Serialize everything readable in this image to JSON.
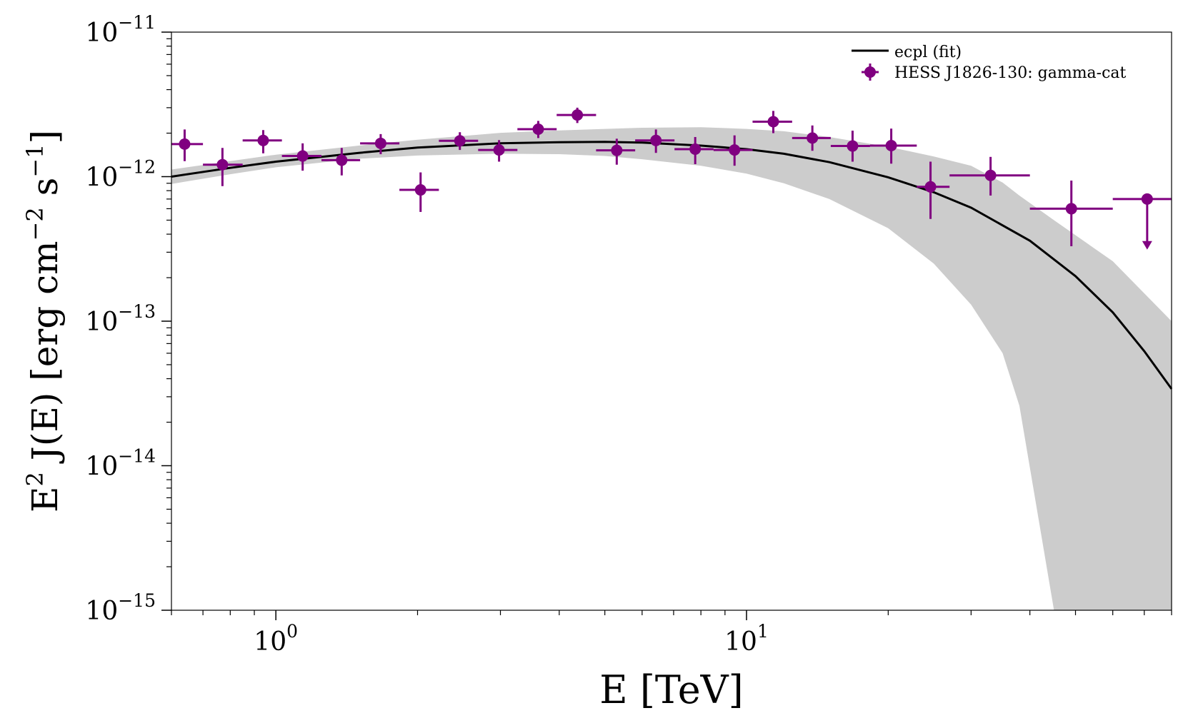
{
  "chart_data": {
    "type": "scatter",
    "title": "",
    "xlabel": "E [TeV]",
    "ylabel_parts": {
      "pre": "E",
      "pre_sup": "2",
      "mid": " J(E) [erg cm",
      "exp1": "−2",
      "mid2": " s",
      "exp2": "−1",
      "post": "]"
    },
    "xscale": "log",
    "yscale": "log",
    "xlim": [
      0.6,
      80
    ],
    "ylim": [
      1e-15,
      1e-11
    ],
    "grid": false,
    "legend_placement": "upper-right",
    "x_ticks": [
      {
        "value": 1,
        "base": "10",
        "exp": "0"
      },
      {
        "value": 10,
        "base": "10",
        "exp": "1"
      }
    ],
    "y_ticks": [
      {
        "value": 1e-11,
        "base": "10",
        "exp": "−11"
      },
      {
        "value": 1e-12,
        "base": "10",
        "exp": "−12"
      },
      {
        "value": 1e-13,
        "base": "10",
        "exp": "−13"
      },
      {
        "value": 1e-14,
        "base": "10",
        "exp": "−14"
      },
      {
        "value": 1e-15,
        "base": "10",
        "exp": "−15"
      }
    ],
    "colors": {
      "points": "#800080",
      "fit": "#000000",
      "band": "#cccccc"
    },
    "series": [
      {
        "name": "ecpl (fit)",
        "kind": "line",
        "x": [
          0.6,
          0.8,
          1.0,
          1.5,
          2.0,
          3.0,
          4.0,
          5.0,
          6.0,
          8.0,
          10.0,
          12.0,
          15.0,
          20.0,
          25.0,
          30.0,
          40.0,
          50.0,
          60.0,
          70.0,
          80.0
        ],
        "y": [
          1e-12,
          1.15e-12,
          1.27e-12,
          1.46e-12,
          1.59e-12,
          1.7e-12,
          1.73e-12,
          1.74e-12,
          1.72e-12,
          1.64e-12,
          1.55e-12,
          1.44e-12,
          1.26e-12,
          9.9e-13,
          7.8e-13,
          6.1e-13,
          3.6e-13,
          2.05e-13,
          1.15e-13,
          6.2e-14,
          3.4e-14
        ]
      },
      {
        "name": "ecpl (fit) band",
        "kind": "band",
        "x": [
          0.6,
          0.8,
          1.0,
          1.5,
          2.0,
          3.0,
          4.0,
          5.0,
          6.0,
          8.0,
          10.0,
          12.0,
          15.0,
          20.0,
          25.0,
          30.0,
          35.0,
          38.0,
          45.0,
          60.0,
          80.0
        ],
        "y_low": [
          8.9e-13,
          1.04e-12,
          1.16e-12,
          1.33e-12,
          1.4e-12,
          1.44e-12,
          1.43e-12,
          1.39e-12,
          1.32e-12,
          1.19e-12,
          1.05e-12,
          9e-13,
          7e-13,
          4.4e-13,
          2.5e-13,
          1.3e-13,
          6e-14,
          2.6e-14,
          1e-15,
          1e-15,
          1e-15
        ],
        "y_high": [
          1.12e-12,
          1.28e-12,
          1.42e-12,
          1.64e-12,
          1.8e-12,
          2.01e-12,
          2.09e-12,
          2.14e-12,
          2.18e-12,
          2.2e-12,
          2.14e-12,
          2.06e-12,
          1.88e-12,
          1.61e-12,
          1.38e-12,
          1.19e-12,
          9.1e-13,
          7.4e-13,
          5e-13,
          2.6e-13,
          1e-13
        ]
      },
      {
        "name": "HESS J1826-130: gamma-cat",
        "kind": "points",
        "points": [
          {
            "x": 0.64,
            "xlo": 0.59,
            "xhi": 0.7,
            "y": 1.68e-12,
            "ylo": 1.28e-12,
            "yhi": 2.12e-12
          },
          {
            "x": 0.77,
            "xlo": 0.7,
            "xhi": 0.85,
            "y": 1.21e-12,
            "ylo": 8.6e-13,
            "yhi": 1.58e-12
          },
          {
            "x": 0.94,
            "xlo": 0.85,
            "xhi": 1.03,
            "y": 1.78e-12,
            "ylo": 1.45e-12,
            "yhi": 2.1e-12
          },
          {
            "x": 1.14,
            "xlo": 1.03,
            "xhi": 1.25,
            "y": 1.39e-12,
            "ylo": 1.1e-12,
            "yhi": 1.7e-12
          },
          {
            "x": 1.38,
            "xlo": 1.25,
            "xhi": 1.51,
            "y": 1.3e-12,
            "ylo": 1.02e-12,
            "yhi": 1.58e-12
          },
          {
            "x": 1.67,
            "xlo": 1.51,
            "xhi": 1.83,
            "y": 1.7e-12,
            "ylo": 1.43e-12,
            "yhi": 1.97e-12
          },
          {
            "x": 2.03,
            "xlo": 1.83,
            "xhi": 2.22,
            "y": 8.1e-13,
            "ylo": 5.7e-13,
            "yhi": 1.07e-12
          },
          {
            "x": 2.46,
            "xlo": 2.22,
            "xhi": 2.69,
            "y": 1.77e-12,
            "ylo": 1.53e-12,
            "yhi": 2.03e-12
          },
          {
            "x": 2.98,
            "xlo": 2.69,
            "xhi": 3.26,
            "y": 1.53e-12,
            "ylo": 1.27e-12,
            "yhi": 1.79e-12
          },
          {
            "x": 3.61,
            "xlo": 3.26,
            "xhi": 3.95,
            "y": 2.13e-12,
            "ylo": 1.85e-12,
            "yhi": 2.43e-12
          },
          {
            "x": 4.37,
            "xlo": 3.95,
            "xhi": 4.79,
            "y": 2.67e-12,
            "ylo": 2.35e-12,
            "yhi": 3e-12
          },
          {
            "x": 5.3,
            "xlo": 4.79,
            "xhi": 5.8,
            "y": 1.52e-12,
            "ylo": 1.21e-12,
            "yhi": 1.83e-12
          },
          {
            "x": 6.42,
            "xlo": 5.8,
            "xhi": 7.03,
            "y": 1.78e-12,
            "ylo": 1.46e-12,
            "yhi": 2.12e-12
          },
          {
            "x": 7.78,
            "xlo": 7.03,
            "xhi": 8.51,
            "y": 1.55e-12,
            "ylo": 1.22e-12,
            "yhi": 1.88e-12
          },
          {
            "x": 9.43,
            "xlo": 8.51,
            "xhi": 10.3,
            "y": 1.53e-12,
            "ylo": 1.19e-12,
            "yhi": 1.93e-12
          },
          {
            "x": 11.4,
            "xlo": 10.3,
            "xhi": 12.5,
            "y": 2.4e-12,
            "ylo": 2e-12,
            "yhi": 2.85e-12
          },
          {
            "x": 13.8,
            "xlo": 12.5,
            "xhi": 15.1,
            "y": 1.85e-12,
            "ylo": 1.51e-12,
            "yhi": 2.26e-12
          },
          {
            "x": 16.8,
            "xlo": 15.1,
            "xhi": 18.3,
            "y": 1.63e-12,
            "ylo": 1.27e-12,
            "yhi": 2.08e-12
          },
          {
            "x": 20.3,
            "xlo": 18.3,
            "xhi": 23.0,
            "y": 1.64e-12,
            "ylo": 1.23e-12,
            "yhi": 2.15e-12
          },
          {
            "x": 24.6,
            "xlo": 23.0,
            "xhi": 27.0,
            "y": 8.5e-13,
            "ylo": 5.1e-13,
            "yhi": 1.27e-12
          },
          {
            "x": 33.0,
            "xlo": 27.0,
            "xhi": 40.0,
            "y": 1.02e-12,
            "ylo": 7.4e-13,
            "yhi": 1.37e-12
          },
          {
            "x": 49.0,
            "xlo": 40.0,
            "xhi": 60.0,
            "y": 6e-13,
            "ylo": 3.3e-13,
            "yhi": 9.4e-13
          },
          {
            "x": 71.0,
            "xlo": 60.0,
            "xhi": 85.0,
            "y": 7e-13,
            "upper_limit": true,
            "arrow_to": 3.2e-13
          }
        ]
      }
    ]
  }
}
